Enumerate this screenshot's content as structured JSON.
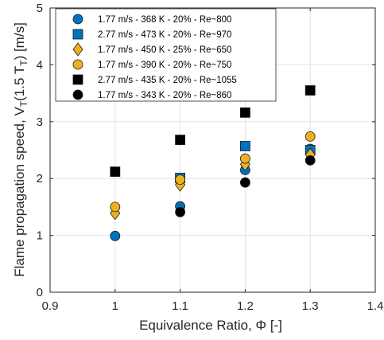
{
  "chart_data": {
    "type": "scatter",
    "xlabel": "Equivalence Ratio, Φ [-]",
    "ylabel": {
      "pre": "Flame propagation speed, V",
      "sub1": "T",
      "mid": "(1.5 T",
      "sub2": "T",
      "post": ") [m/s]"
    },
    "xlim": [
      0.9,
      1.4
    ],
    "ylim": [
      0,
      5
    ],
    "xticks": [
      0.9,
      1,
      1.1,
      1.2,
      1.3,
      1.4
    ],
    "xtick_labels": [
      "0.9",
      "1",
      "1.1",
      "1.2",
      "1.3",
      "1.4"
    ],
    "yticks": [
      0,
      1,
      2,
      3,
      4,
      5
    ],
    "ytick_labels": [
      "0",
      "1",
      "2",
      "3",
      "4",
      "5"
    ],
    "grid": true,
    "legend_position": "top-left",
    "series": [
      {
        "name": "1.77 m/s - 368 K - 20% - Re~800",
        "marker": "circle",
        "color": "#0072BD",
        "points": [
          [
            1.0,
            0.99
          ],
          [
            1.1,
            1.51
          ],
          [
            1.2,
            2.15
          ],
          [
            1.3,
            2.52
          ]
        ]
      },
      {
        "name": "2.77 m/s - 473 K - 20% - Re~970",
        "marker": "square",
        "color": "#0072BD",
        "points": [
          [
            1.1,
            2.01
          ],
          [
            1.2,
            2.57
          ],
          [
            1.3,
            2.5
          ]
        ]
      },
      {
        "name": "1.77 m/s - 450 K - 25% - Re~650",
        "marker": "diamond",
        "color": "#EDB120",
        "points": [
          [
            1.0,
            1.39
          ],
          [
            1.1,
            1.89
          ],
          [
            1.2,
            2.25
          ],
          [
            1.3,
            2.42
          ]
        ]
      },
      {
        "name": "1.77 m/s - 390 K - 20% - Re~750",
        "marker": "circle",
        "color": "#EDB120",
        "points": [
          [
            1.0,
            1.5
          ],
          [
            1.1,
            1.98
          ],
          [
            1.2,
            2.35
          ],
          [
            1.3,
            2.74
          ]
        ]
      },
      {
        "name": "2.77 m/s - 435 K - 20% - Re~1055",
        "marker": "square",
        "color": "#000000",
        "points": [
          [
            1.0,
            2.12
          ],
          [
            1.1,
            2.68
          ],
          [
            1.2,
            3.16
          ],
          [
            1.3,
            3.55
          ]
        ]
      },
      {
        "name": "1.77 m/s - 343 K - 20% - Re~860",
        "marker": "circle",
        "color": "#000000",
        "points": [
          [
            1.1,
            1.41
          ],
          [
            1.2,
            1.93
          ],
          [
            1.3,
            2.32
          ]
        ]
      }
    ]
  }
}
